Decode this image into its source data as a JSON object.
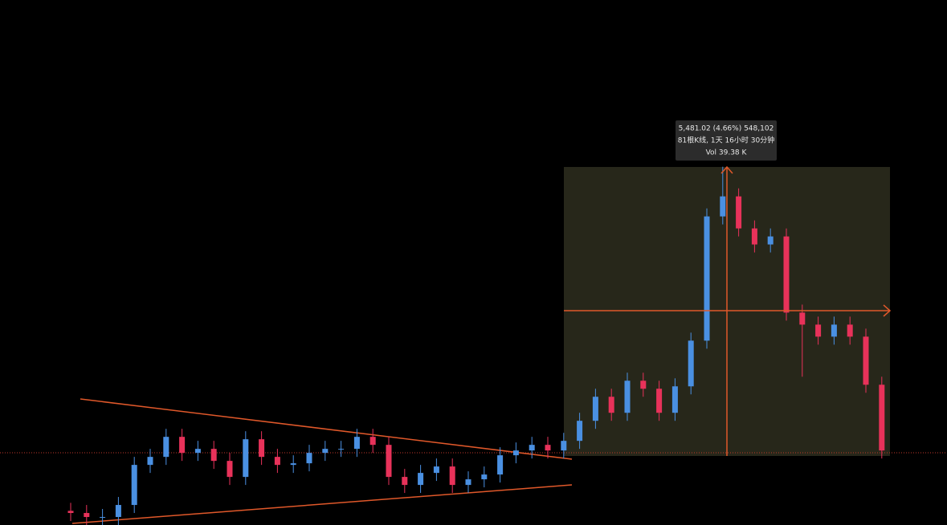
{
  "chart_data": {
    "type": "candlestick",
    "measure_label": "5,481.02 (4.66%) 548,102",
    "measure_bars": "81根K线, 1天 16小时 30分钟",
    "measure_volume": "Vol 39.38 K",
    "up_color": "#4a90e2",
    "down_color": "#e8325a",
    "ylim": [
      -1365,
      8460
    ],
    "open": [
      -1100,
      -1140,
      -1215,
      -1215,
      -990,
      -240,
      -90,
      285,
      -15,
      60,
      -165,
      -465,
      240,
      -90,
      -240,
      -210,
      -15,
      60,
      60,
      285,
      135,
      -465,
      -615,
      -390,
      -270,
      -615,
      -510,
      -420,
      -60,
      30,
      135,
      30,
      210,
      585,
      1035,
      735,
      1335,
      1185,
      735,
      1230,
      2085,
      4410,
      4785,
      4185,
      3885,
      4035,
      2610,
      2385,
      2160,
      2385,
      2160,
      1260
    ],
    "high": [
      -950,
      -990,
      -1065,
      -840,
      -90,
      60,
      435,
      435,
      210,
      210,
      -15,
      390,
      390,
      60,
      -60,
      135,
      210,
      210,
      435,
      435,
      285,
      -315,
      -240,
      -120,
      -120,
      -360,
      -270,
      90,
      180,
      285,
      285,
      360,
      735,
      1185,
      1185,
      1485,
      1485,
      1335,
      1380,
      2235,
      4560,
      5340,
      4935,
      4335,
      4185,
      4185,
      2760,
      2535,
      2535,
      2535,
      2310,
      1410
    ],
    "low": [
      -1290,
      -1365,
      -1365,
      -1365,
      -1140,
      -390,
      -240,
      -165,
      -165,
      -315,
      -615,
      -615,
      -240,
      -390,
      -390,
      -360,
      -165,
      -90,
      -90,
      -15,
      -615,
      -765,
      -765,
      -540,
      -765,
      -765,
      -660,
      -570,
      -210,
      -120,
      -120,
      -120,
      60,
      435,
      585,
      585,
      1035,
      585,
      585,
      1080,
      1935,
      4260,
      4035,
      3735,
      3735,
      2460,
      1410,
      2010,
      2010,
      2010,
      1110,
      -120
    ],
    "close": [
      -1140,
      -1215,
      -1215,
      -990,
      -240,
      -90,
      285,
      -15,
      60,
      -165,
      -465,
      240,
      -90,
      -240,
      -210,
      -15,
      60,
      60,
      285,
      135,
      -465,
      -615,
      -390,
      -270,
      -615,
      -510,
      -420,
      -60,
      30,
      135,
      30,
      210,
      585,
      1035,
      735,
      1335,
      1185,
      735,
      1230,
      2085,
      4410,
      4785,
      4185,
      3885,
      4035,
      2610,
      2385,
      2160,
      2385,
      2160,
      1260,
      30
    ]
  }
}
